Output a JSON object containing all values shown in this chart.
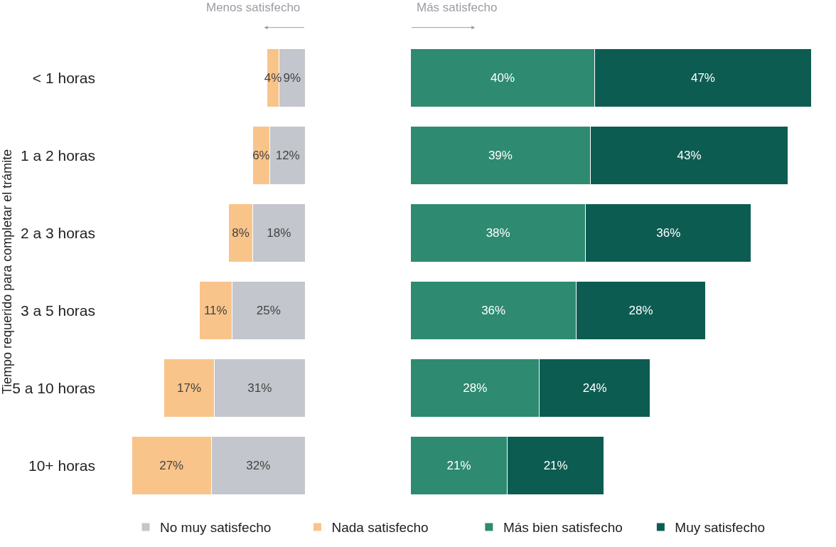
{
  "chart_data": [
    {
      "type": "bar",
      "orientation": "horizontal",
      "stacked": true,
      "ylabel": "Tiempo requerido para completar el trámite",
      "categories": [
        "< 1 horas",
        "1 a 2 horas",
        "2 a 3 horas",
        "3 a 5 horas",
        "5 a 10 horas",
        "10+ horas"
      ],
      "series": [
        {
          "name": "No muy satisfecho",
          "color": "#c3c6cc",
          "values": [
            9,
            12,
            18,
            25,
            31,
            32
          ],
          "value_labels": [
            "9%",
            "12%",
            "18%",
            "25%",
            "31%",
            "32%"
          ]
        },
        {
          "name": "Nada satisfecho",
          "color": "#f9c48a",
          "values": [
            4,
            6,
            8,
            11,
            17,
            27
          ],
          "value_labels": [
            "4%",
            "6%",
            "8%",
            "11%",
            "17%",
            "27%"
          ]
        }
      ],
      "annotations": [
        "Menos satisfecho"
      ],
      "legend": "bottom",
      "tick_labels": "y"
    },
    {
      "type": "bar",
      "orientation": "horizontal",
      "stacked": true,
      "categories": [
        "< 1 horas",
        "1 a 2 horas",
        "2 a 3 horas",
        "3 a 5 horas",
        "5 a 10 horas",
        "10+ horas"
      ],
      "series": [
        {
          "name": "Más bien satisfecho",
          "color": "#2e8a70",
          "values": [
            40,
            39,
            38,
            36,
            28,
            21
          ],
          "value_labels": [
            "40%",
            "39%",
            "38%",
            "36%",
            "28%",
            "21%"
          ]
        },
        {
          "name": "Muy satisfecho",
          "color": "#0d5c52",
          "values": [
            47,
            43,
            36,
            28,
            24,
            21
          ],
          "value_labels": [
            "47%",
            "43%",
            "36%",
            "28%",
            "24%",
            "21%"
          ]
        }
      ],
      "annotations": [
        "Más satisfecho"
      ],
      "legend": "bottom",
      "tick_labels": false
    }
  ]
}
